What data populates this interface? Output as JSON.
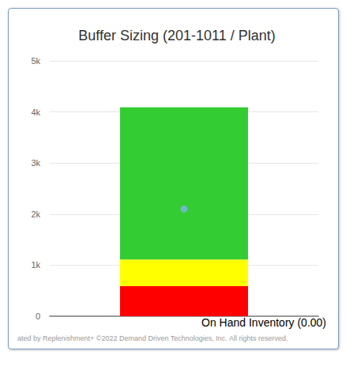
{
  "chart_data": {
    "type": "bar",
    "title": "Buffer Sizing (201-1011 / Plant)",
    "categories": [
      null
    ],
    "stacked": true,
    "series": [
      {
        "color": "#ff0000",
        "values": [
          590
        ]
      },
      {
        "color": "#ffff00",
        "values": [
          520
        ]
      },
      {
        "color": "#33cc33",
        "values": [
          2980
        ]
      },
      {
        "type": "scatter",
        "color": "#7cb5ec",
        "marker": "circle",
        "values": [
          2100
        ]
      }
    ],
    "ylim": [
      0,
      5000
    ],
    "yticks": [
      0,
      {
        "value": 1000,
        "label": "1k"
      },
      {
        "value": 2000,
        "label": "2k"
      },
      {
        "value": 3000,
        "label": "3k"
      },
      {
        "value": 4000,
        "label": "4k"
      },
      {
        "value": 5000,
        "label": "5k"
      }
    ],
    "grid": true,
    "tick_labels": "y",
    "annotations": [
      "On Hand Inventory (0.00)",
      "ated by Replenishment+ ©2022 Demand Driven Technologies, Inc. All rights reserved."
    ]
  }
}
